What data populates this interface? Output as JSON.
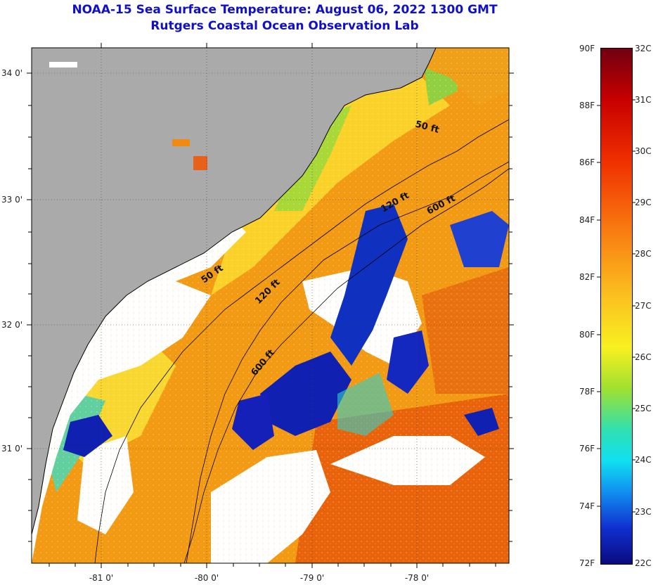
{
  "header": {
    "title": "NOAA-15 Sea Surface Temperature:  August 06, 2022 1300 GMT",
    "subtitle": "Rutgers Coastal Ocean Observation Lab"
  },
  "map": {
    "lat_ticks": [
      {
        "value": 34,
        "label": "34 0'"
      },
      {
        "value": 33,
        "label": "33 0'"
      },
      {
        "value": 32,
        "label": "32 0'"
      },
      {
        "value": 31,
        "label": "31 0'"
      }
    ],
    "lon_ticks": [
      {
        "value": -81,
        "label": "-81 0'"
      },
      {
        "value": -80,
        "label": "-80 0'"
      },
      {
        "value": -79,
        "label": "-79 0'"
      },
      {
        "value": -78,
        "label": "-78 0'"
      }
    ],
    "contour_labels": [
      {
        "text": "50 ft"
      },
      {
        "text": "120 ft"
      },
      {
        "text": "600 ft"
      },
      {
        "text": "50 ft"
      },
      {
        "text": "120 ft"
      },
      {
        "text": "600 ft"
      }
    ],
    "colors": {
      "land": "#aaaaaa",
      "cloud": "#ffffff",
      "warm": "#f39a14",
      "hot": "#e85a0a",
      "mild": "#fbd02a",
      "cool": "#1020b0"
    }
  },
  "colorbar": {
    "fahrenheit": [
      "90F",
      "88F",
      "86F",
      "84F",
      "82F",
      "80F",
      "78F",
      "76F",
      "74F",
      "72F"
    ],
    "celsius": [
      "32C",
      "31C",
      "30C",
      "29C",
      "28C",
      "27C",
      "26C",
      "25C",
      "24C",
      "23C",
      "22C"
    ],
    "range_f": [
      72,
      90
    ],
    "range_c": [
      22,
      32
    ]
  }
}
